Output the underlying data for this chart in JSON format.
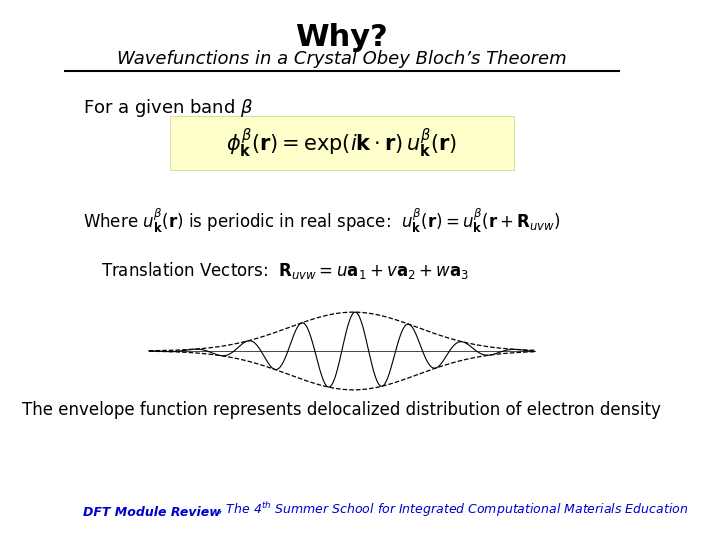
{
  "title": "Why?",
  "subtitle": "Wavefunctions in a Crystal Obey Bloch’s Theorem",
  "bg_color": "#ffffff",
  "title_color": "#000000",
  "subtitle_color": "#000000",
  "line_color": "#000000",
  "bloch_box_color": "#ffffcc",
  "envelope_text": "The envelope function represents delocalized distribution of electron density",
  "footer_color": "#0000cc"
}
